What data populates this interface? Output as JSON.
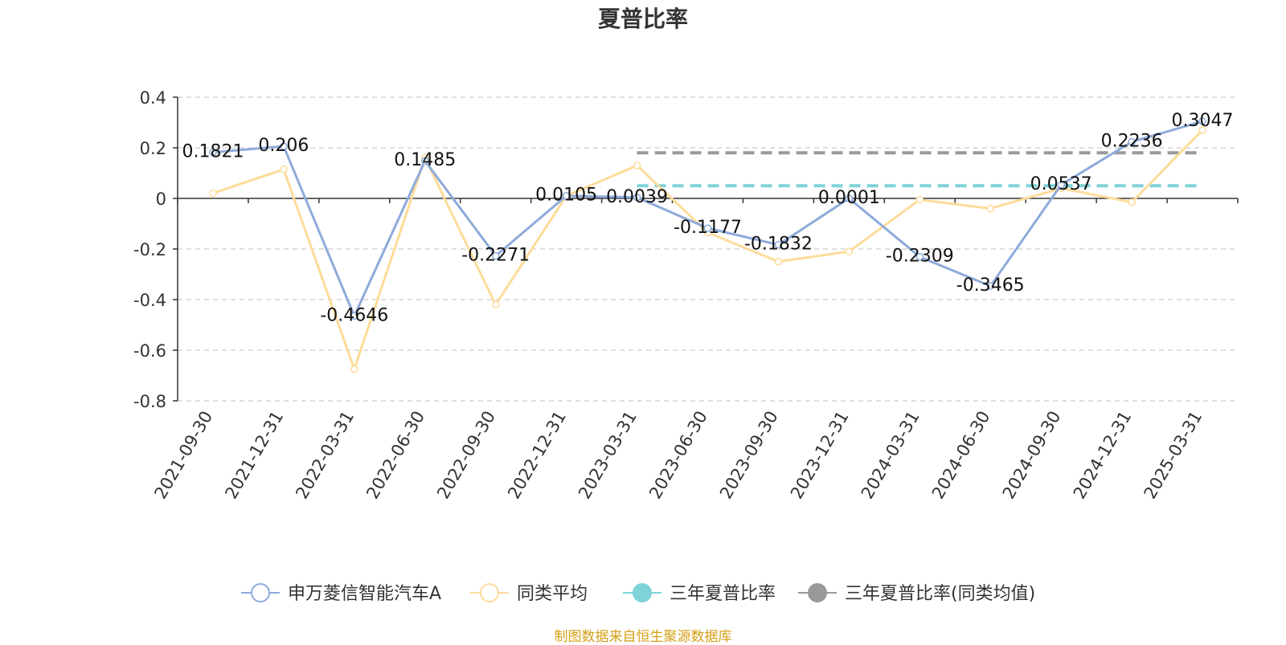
{
  "chart_data": {
    "type": "line",
    "title": "夏普比率",
    "categories": [
      "2021-09-30",
      "2021-12-31",
      "2022-03-31",
      "2022-06-30",
      "2022-09-30",
      "2022-12-31",
      "2023-03-31",
      "2023-06-30",
      "2023-09-30",
      "2023-12-31",
      "2024-03-31",
      "2024-06-30",
      "2024-09-30",
      "2024-12-31",
      "2025-03-31"
    ],
    "ylim": [
      -0.8,
      0.4
    ],
    "yticks": [
      "-0.8",
      "-0.6",
      "-0.4",
      "-0.2",
      "0",
      "0.2",
      "0.4"
    ],
    "grid": true,
    "legend_position": "bottom",
    "series": [
      {
        "name": "申万菱信智能汽车A",
        "color": "#8eaadb",
        "values": [
          0.1821,
          0.206,
          -0.4646,
          0.1485,
          -0.2271,
          0.0105,
          0.0039,
          -0.1177,
          -0.1832,
          0.0001,
          -0.2309,
          -0.3465,
          0.0537,
          0.2236,
          0.3047
        ],
        "labels": [
          "0.1821",
          "0.206",
          "-0.4646",
          "0.1485",
          "-0.2271",
          "0.0105",
          "0.0039",
          "-0.1177",
          "-0.1832",
          "0.0001",
          "-0.2309",
          "-0.3465",
          "0.0537",
          "0.2236",
          "0.3047"
        ]
      },
      {
        "name": "同类平均",
        "color": "#fddc9a",
        "values": [
          0.02,
          0.115,
          -0.675,
          0.16,
          -0.42,
          0.01,
          0.13,
          -0.135,
          -0.25,
          -0.21,
          -0.005,
          -0.04,
          0.04,
          -0.015,
          0.27
        ]
      },
      {
        "name": "三年夏普比率",
        "color": "#7fd3d8",
        "dashed": true,
        "value": 0.05,
        "from": "2023-03-31",
        "to": "2025-03-31"
      },
      {
        "name": "三年夏普比率(同类均值)",
        "color": "#999999",
        "dashed": true,
        "value": 0.18,
        "from": "2023-03-31",
        "to": "2025-03-31"
      }
    ]
  },
  "source_text": "制图数据来自恒生聚源数据库"
}
